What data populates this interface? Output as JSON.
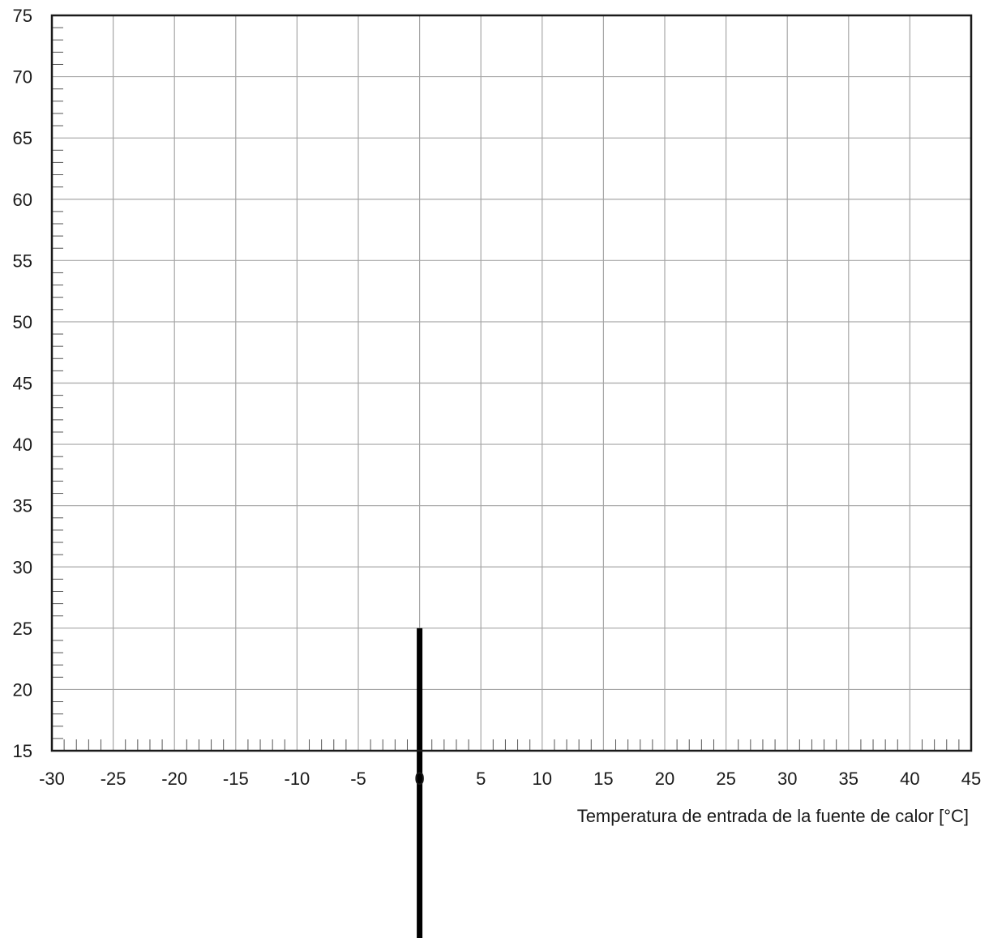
{
  "chart_data": {
    "type": "line",
    "title": "",
    "xlabel": "Temperatura de entrada de la fuente de calor [°C]",
    "ylabel": "",
    "xlim": [
      -30,
      45
    ],
    "ylim": [
      15,
      75
    ],
    "x_ticks": [
      -30,
      -25,
      -20,
      -15,
      -10,
      -5,
      0,
      5,
      10,
      15,
      20,
      25,
      30,
      35,
      40,
      45
    ],
    "y_ticks": [
      15,
      20,
      25,
      30,
      35,
      40,
      45,
      50,
      55,
      60,
      65,
      70,
      75
    ],
    "x_minor_step": 1,
    "y_minor_step": 1,
    "grid": true,
    "grid_color": "#a6a6a6",
    "axis_color": "#1a1a1a",
    "series": [
      {
        "color": "#000000",
        "x": [
          0,
          0
        ],
        "y": [
          25,
          -1
        ]
      }
    ]
  }
}
